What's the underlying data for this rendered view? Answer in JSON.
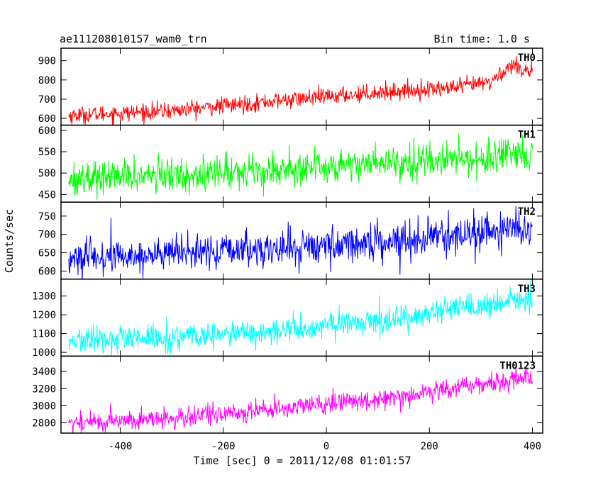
{
  "header": {
    "source": "ae111208010157_wam0_trn",
    "bin_time": "Bin time: 1.0 s"
  },
  "chart_data": {
    "type": "line",
    "title": "ae111208010157_wam0_trn",
    "xlabel": "Time [sec] 0 = 2011/12/08 01:01:57",
    "ylabel": "Counts/sec",
    "xlim": [
      -515,
      420
    ],
    "x_ticks": [
      -400,
      -200,
      0,
      200,
      400
    ],
    "x_range": [
      -500,
      400
    ],
    "bin_time_s": 1.0,
    "grid": false,
    "series": [
      {
        "name": "TH0",
        "color": "#ff0000",
        "ylim": [
          565,
          965
        ],
        "y_ticks": [
          600,
          700,
          800,
          900
        ],
        "trend": [
          [
            -500,
            615
          ],
          [
            -300,
            640
          ],
          [
            -100,
            690
          ],
          [
            100,
            735
          ],
          [
            250,
            760
          ],
          [
            320,
            790
          ],
          [
            360,
            880
          ],
          [
            400,
            840
          ]
        ],
        "noise_sd": 22
      },
      {
        "name": "TH1",
        "color": "#00ff00",
        "ylim": [
          432,
          612
        ],
        "y_ticks": [
          450,
          500,
          550,
          600
        ],
        "trend": [
          [
            -500,
            488
          ],
          [
            -300,
            495
          ],
          [
            -100,
            508
          ],
          [
            100,
            525
          ],
          [
            300,
            535
          ],
          [
            400,
            538
          ]
        ],
        "noise_sd": 20
      },
      {
        "name": "TH2",
        "color": "#0000ff",
        "ylim": [
          578,
          788
        ],
        "y_ticks": [
          600,
          650,
          700,
          750
        ],
        "trend": [
          [
            -500,
            632
          ],
          [
            -300,
            648
          ],
          [
            -100,
            660
          ],
          [
            100,
            680
          ],
          [
            300,
            705
          ],
          [
            400,
            715
          ]
        ],
        "noise_sd": 24
      },
      {
        "name": "TH3",
        "color": "#00ffff",
        "ylim": [
          980,
          1390
        ],
        "y_ticks": [
          1000,
          1100,
          1200,
          1300
        ],
        "trend": [
          [
            -500,
            1060
          ],
          [
            -300,
            1075
          ],
          [
            -100,
            1110
          ],
          [
            100,
            1170
          ],
          [
            300,
            1240
          ],
          [
            400,
            1290
          ]
        ],
        "noise_sd": 35
      },
      {
        "name": "TH0123",
        "color": "#ff00ff",
        "ylim": [
          2680,
          3580
        ],
        "y_ticks": [
          2800,
          3000,
          3200,
          3400
        ],
        "trend": [
          [
            -500,
            2800
          ],
          [
            -300,
            2850
          ],
          [
            -100,
            2960
          ],
          [
            100,
            3080
          ],
          [
            300,
            3250
          ],
          [
            400,
            3340
          ]
        ],
        "noise_sd": 60
      }
    ]
  }
}
